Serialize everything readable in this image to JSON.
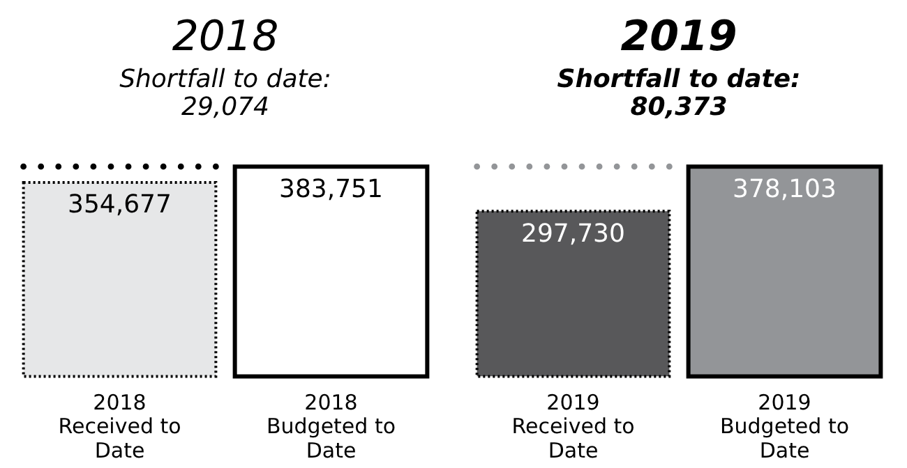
{
  "chart_data": [
    {
      "type": "bar",
      "title": "2018",
      "subtitle": "Shortfall to date: 29,074",
      "categories": [
        "2018 Received to Date",
        "2018 Budgeted to Date"
      ],
      "values": [
        354677,
        383751
      ],
      "colors": [
        "#e6e7e8",
        "#ffffff"
      ],
      "value_labels": [
        "354,677",
        "383,751"
      ],
      "ref_lines": [
        {
          "axis": "y",
          "value": 383751,
          "color": "#000000",
          "line_style": "dotted"
        }
      ]
    },
    {
      "type": "bar",
      "title": "2019",
      "subtitle": "Shortfall to date: 80,373",
      "categories": [
        "2019 Received to Date",
        "2019 Budgeted to Date"
      ],
      "values": [
        297730,
        378103
      ],
      "colors": [
        "#58585a",
        "#939598"
      ],
      "value_labels": [
        "297,730",
        "378,103"
      ],
      "ref_lines": [
        {
          "axis": "y",
          "value": 378103,
          "color": "#939598",
          "line_style": "dotted"
        }
      ]
    }
  ]
}
